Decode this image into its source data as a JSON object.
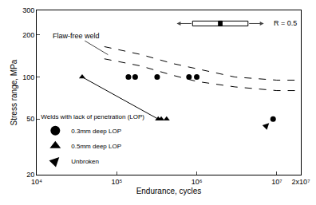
{
  "chart_data": {
    "type": "scatter",
    "xlabel": "Endurance, cycles",
    "ylabel": "Stress range, MPa",
    "log": true,
    "grid": false,
    "legend": "bottom-left",
    "legend_title": "Welds with lack of penetration (LOP)",
    "annotations": [
      "Flaw-free weld",
      "R = 0.5"
    ],
    "xlim": [
      10000,
      20000000
    ],
    "ylim": [
      20,
      300
    ],
    "xticks": [
      {
        "value": 10000,
        "label": "10⁴"
      },
      {
        "value": 100000,
        "label": "10⁵"
      },
      {
        "value": 1000000,
        "label": "10⁶"
      },
      {
        "value": 10000000,
        "label": "10⁷"
      },
      {
        "value": 20000000,
        "label": "2x10⁷"
      }
    ],
    "yticks": [
      20,
      50,
      100,
      200,
      300
    ],
    "series": [
      {
        "name": "0.3mm deep LOP",
        "type": "scatter",
        "marker": "circle",
        "color": "#000000",
        "x": [
          140000,
          170000,
          320000,
          800000,
          1000000,
          9000000
        ],
        "values": [
          100,
          100,
          100,
          100,
          100,
          50
        ]
      },
      {
        "name": "0.5mm deep LOP",
        "type": "scatter",
        "marker": "triangle",
        "color": "#000000",
        "x": [
          37000,
          330000,
          360000,
          420000
        ],
        "values": [
          100,
          50,
          50,
          50
        ]
      },
      {
        "name": "Unbroken",
        "type": "scatter",
        "marker": "arrow",
        "color": "#000000",
        "x": [
          9000000
        ],
        "values": [
          50
        ]
      },
      {
        "type": "line",
        "line_style": "solid",
        "color": "#000000",
        "x": [
          37000,
          330000
        ],
        "values": [
          100,
          50
        ]
      },
      {
        "type": "line",
        "line_style": "dash",
        "color": "#000000",
        "x": [
          70000,
          200000,
          500000,
          1000000,
          3000000,
          10000000,
          20000000
        ],
        "values": [
          165,
          145,
          125,
          115,
          100,
          95,
          95
        ]
      },
      {
        "type": "line",
        "line_style": "dash",
        "color": "#000000",
        "x": [
          70000,
          200000,
          500000,
          1000000,
          3000000,
          10000000,
          20000000
        ],
        "values": [
          135,
          120,
          103,
          93,
          85,
          80,
          80
        ]
      }
    ]
  }
}
